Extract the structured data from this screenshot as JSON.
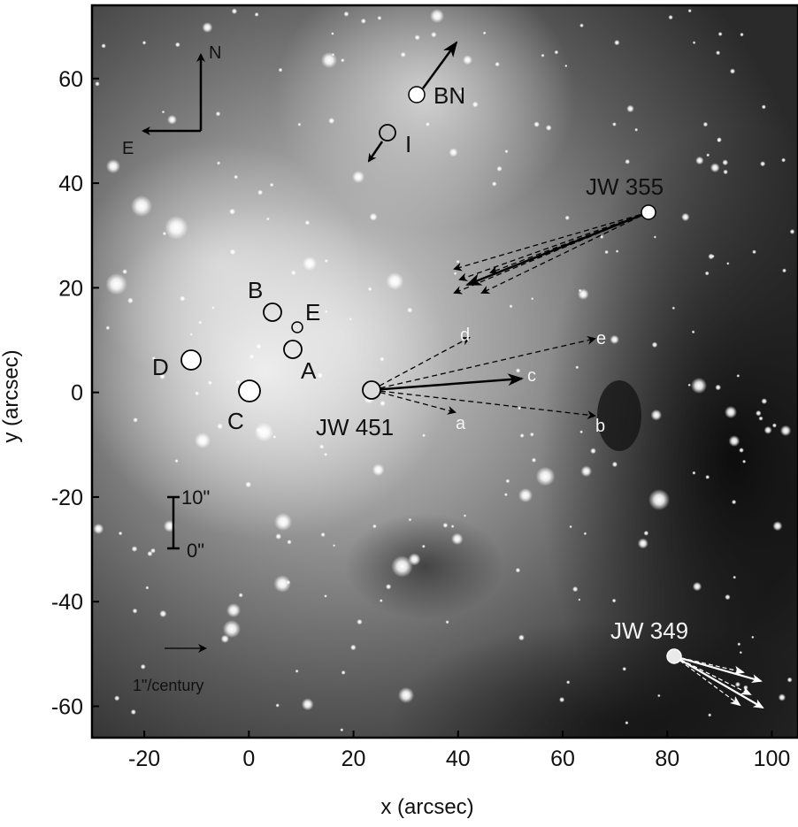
{
  "axes": {
    "xlabel": "x (arcsec)",
    "ylabel": "y (arcsec)",
    "xlim": [
      -30,
      105
    ],
    "ylim": [
      -66,
      74
    ],
    "xticks": [
      "-20",
      "0",
      "20",
      "40",
      "60",
      "80",
      "100"
    ],
    "yticks": [
      "60",
      "40",
      "20",
      "0",
      "-20",
      "-40",
      "-60"
    ]
  },
  "compass": {
    "north": "N",
    "east": "E"
  },
  "scale_bar": {
    "top_label": "10\"",
    "bottom_label": "0\""
  },
  "motion_scale": {
    "label": "1\"/century"
  },
  "sources": {
    "BN": "BN",
    "I": "I",
    "JW355": "JW 355",
    "B": "B",
    "E": "E",
    "A": "A",
    "D": "D",
    "C": "C",
    "JW451": "JW 451",
    "JW349": "JW 349"
  },
  "vector_labels": {
    "a": "a",
    "b": "b",
    "c": "c",
    "d": "d",
    "e": "e"
  },
  "colors": {
    "dark_text": "#111111",
    "light_text": "#f4f4f4",
    "frame": "#000000"
  }
}
